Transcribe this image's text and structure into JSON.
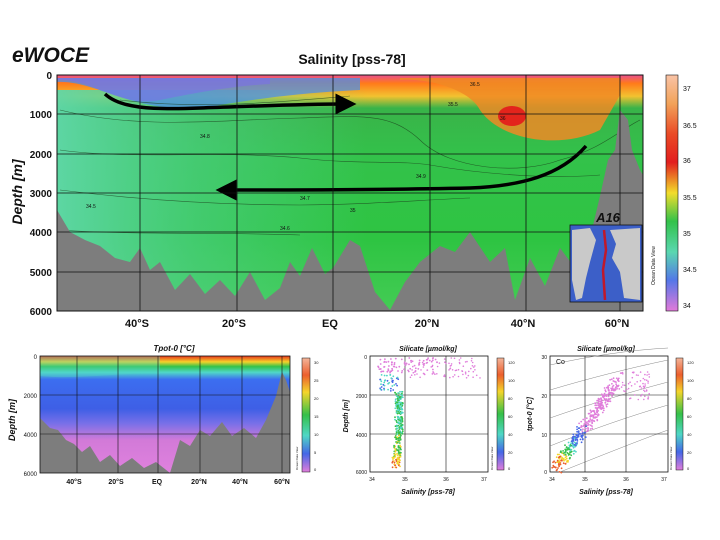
{
  "logo": "eWOCE",
  "chart_data": [
    {
      "type": "heatmap",
      "title": "Salinity [pss-78]",
      "ylabel": "Depth [m]",
      "y_ticks": [
        "0",
        "1000",
        "2000",
        "3000",
        "4000",
        "5000",
        "6000"
      ],
      "x_ticks": [
        "40°S",
        "20°S",
        "EQ",
        "20°N",
        "40°N",
        "60°N"
      ],
      "colorbar_ticks": [
        "37",
        "36.5",
        "36",
        "35.5",
        "35",
        "34.5",
        "34"
      ],
      "colorbar_caption": "Ocean Data View",
      "inset_label": "A16",
      "contour_labels": [
        "34.5",
        "34.6",
        "34.7",
        "34.8",
        "34.9",
        "35",
        "35.5",
        "36",
        "36.5"
      ]
    },
    {
      "type": "heatmap",
      "title": "Tpot-0 [°C]",
      "ylabel": "Depth [m]",
      "y_ticks": [
        "0",
        "2000",
        "4000",
        "6000"
      ],
      "x_ticks": [
        "40°S",
        "20°S",
        "EQ",
        "20°N",
        "40°N",
        "60°N"
      ],
      "colorbar_ticks": [
        "30",
        "25",
        "20",
        "15",
        "10",
        "5",
        "0"
      ],
      "colorbar_caption": "Ocean Data View"
    },
    {
      "type": "scatter",
      "title": "Silicate [µmol/kg]",
      "xlabel": "Salinity [pss-78]",
      "ylabel": "Depth [m]",
      "x_ticks": [
        "34",
        "35",
        "36",
        "37"
      ],
      "y_ticks": [
        "0",
        "2000",
        "4000",
        "6000"
      ],
      "colorbar_ticks": [
        "120",
        "100",
        "80",
        "60",
        "40",
        "20",
        "0"
      ],
      "colorbar_caption": "Ocean Data View"
    },
    {
      "type": "scatter",
      "title": "Silicate [µmol/kg]",
      "xlabel": "Salinity [pss-78]",
      "ylabel": "tpot-0 [°C]",
      "x_ticks": [
        "34",
        "35",
        "36",
        "37"
      ],
      "y_ticks": [
        "0",
        "10",
        "20",
        "30"
      ],
      "corner_label": "Co",
      "colorbar_ticks": [
        "120",
        "100",
        "80",
        "60",
        "40",
        "20",
        "0"
      ],
      "colorbar_caption": "Ocean Data View"
    }
  ],
  "colors": {
    "land": "#7d7d7d",
    "panel_border": "#111111",
    "arrow": "#000000"
  }
}
